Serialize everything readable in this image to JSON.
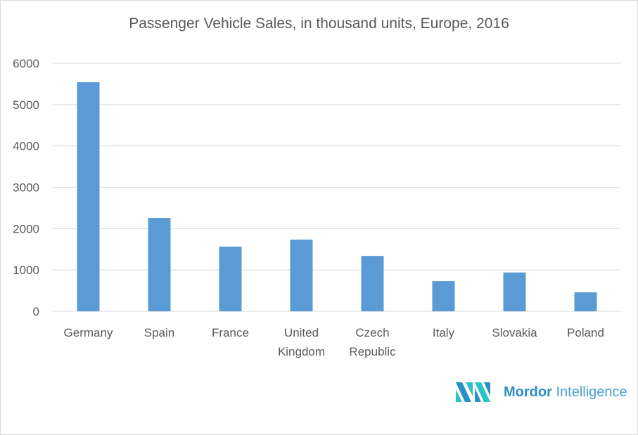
{
  "chart_data": {
    "type": "bar",
    "title": "Passenger Vehicle Sales, in thousand units, Europe, 2016",
    "categories": [
      [
        "Germany"
      ],
      [
        "Spain"
      ],
      [
        "France"
      ],
      [
        "United",
        "Kingdom"
      ],
      [
        "Czech",
        "Republic"
      ],
      [
        "Italy"
      ],
      [
        "Slovakia"
      ],
      [
        "Poland"
      ]
    ],
    "values": [
      5540,
      2260,
      1565,
      1735,
      1340,
      730,
      940,
      460
    ],
    "ylim": [
      0,
      6000
    ],
    "yticks": [
      0,
      1000,
      2000,
      3000,
      4000,
      5000,
      6000
    ],
    "grid": true,
    "legend": "none",
    "bar_color": "#5b9bd5",
    "xlabel": "",
    "ylabel": ""
  },
  "branding": {
    "logo_bold": "Mordor",
    "logo_light": "Intelligence",
    "colors": [
      "#2a8fc4",
      "#2cc4c7"
    ]
  }
}
